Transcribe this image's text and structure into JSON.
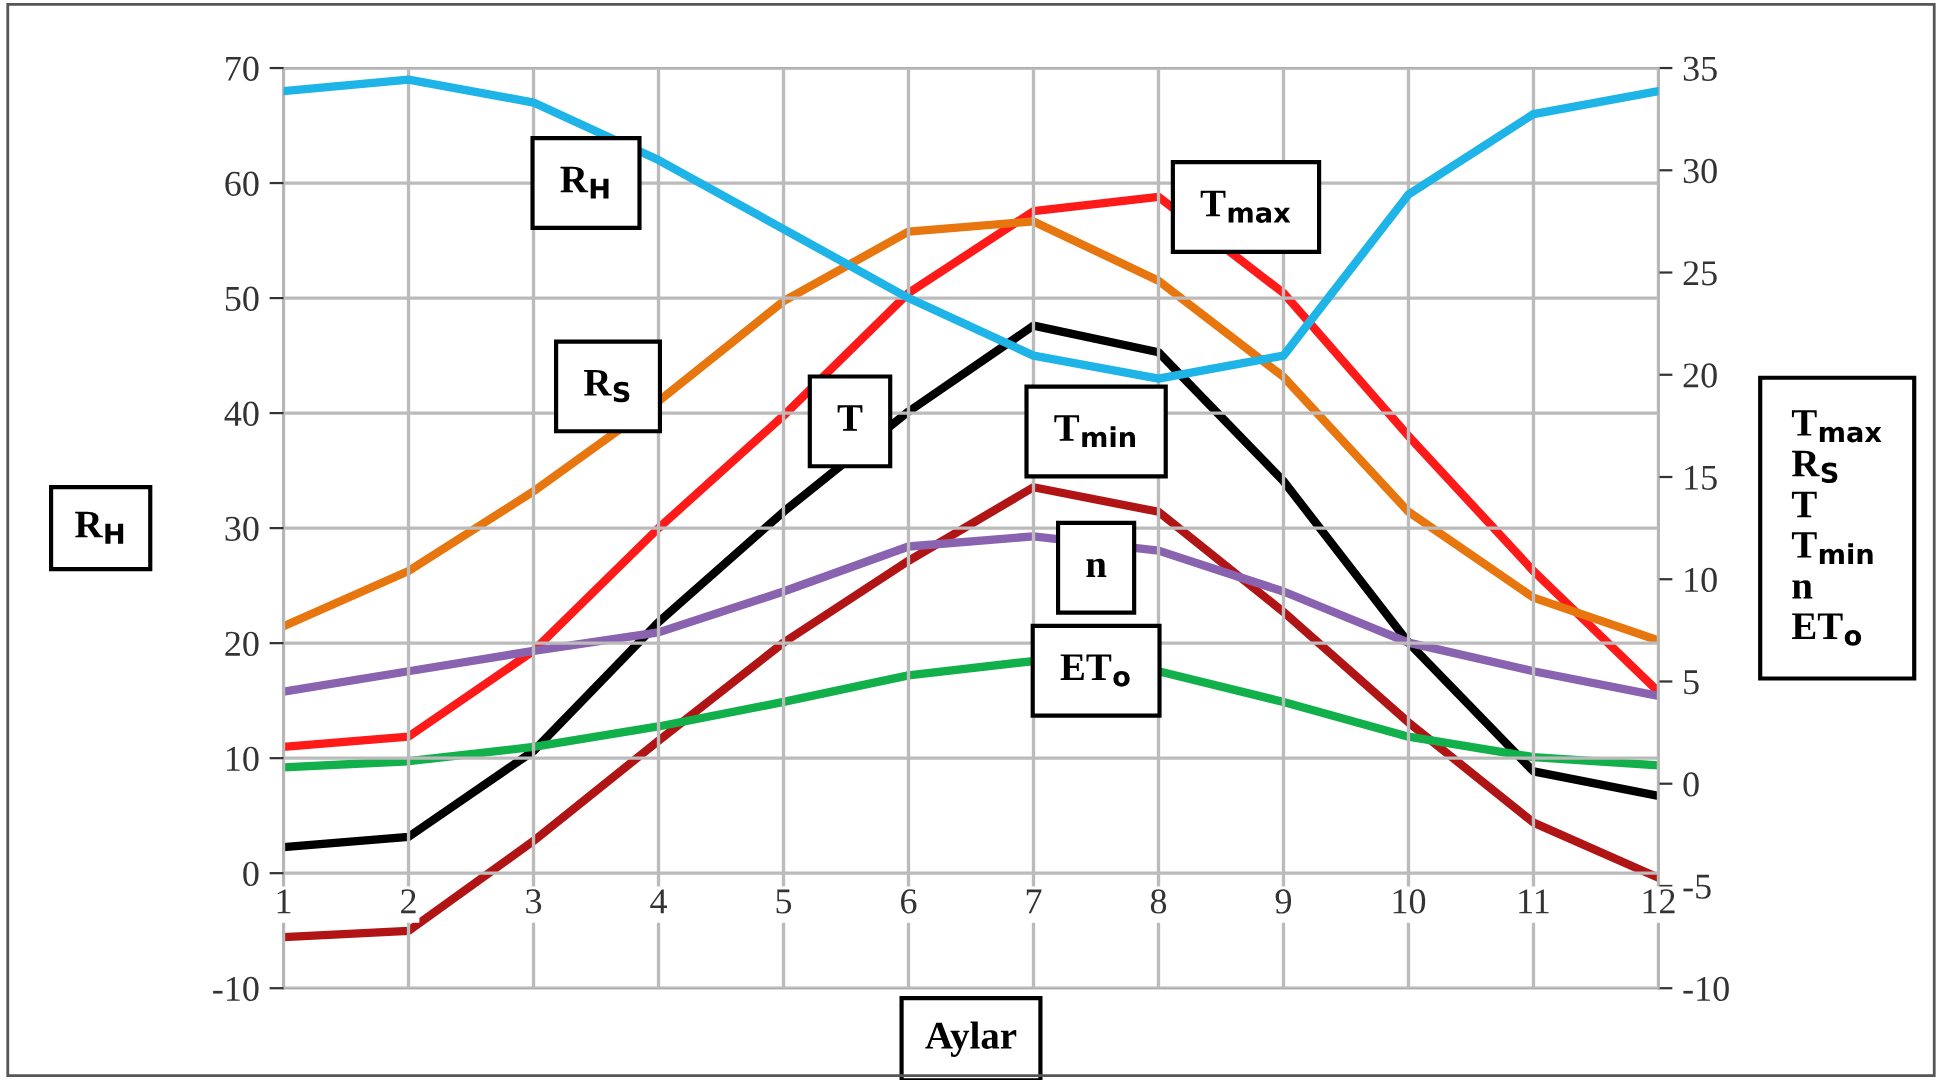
{
  "chart_data": {
    "type": "line",
    "xlabel": "Aylar",
    "ylabel": "R$_{H}$",
    "y2label": "T$_{max}$\nR$_{S}$\nT\nT$_{min}$\nn\nET$_{o}$",
    "x": [
      1,
      2,
      3,
      4,
      5,
      6,
      7,
      8,
      9,
      10,
      11,
      12
    ],
    "xlim": [
      1,
      12
    ],
    "xticks": [
      1,
      2,
      3,
      4,
      5,
      6,
      7,
      8,
      9,
      10,
      11,
      12
    ],
    "ylim": [
      -10,
      70
    ],
    "yticks": [
      -10,
      0,
      10,
      20,
      30,
      40,
      50,
      60,
      70
    ],
    "y2lim": [
      -10,
      35
    ],
    "y2ticks": [
      -10,
      -5,
      0,
      5,
      10,
      15,
      20,
      25,
      30,
      35
    ],
    "grid": true,
    "legend": false,
    "marker": "none",
    "line_style": "solid",
    "series": [
      {
        "color": "#1fb4e8",
        "values": [
          68,
          69,
          67,
          62,
          56,
          50,
          45,
          43,
          45,
          59,
          66,
          68
        ]
      },
      {
        "color": "#ff1a1a",
        "axis": "y2",
        "values": [
          1.8,
          2.3,
          6.5,
          12.5,
          18,
          24,
          28,
          28.7,
          24,
          17,
          10.4,
          4.5
        ]
      },
      {
        "color": "#e8760e",
        "axis": "y2",
        "values": [
          7.7,
          10.4,
          14.3,
          18.7,
          23.6,
          27,
          27.5,
          24.6,
          19.9,
          13.3,
          9.1,
          7
        ]
      },
      {
        "color": "#000000",
        "axis": "y2",
        "values": [
          -3.1,
          -2.6,
          1.6,
          7.9,
          13.3,
          18.2,
          22.4,
          21.1,
          14.8,
          6.9,
          0.6,
          -0.6
        ]
      },
      {
        "color": "#b01414",
        "axis": "y2",
        "values": [
          -7.5,
          -7.2,
          -2.8,
          2.1,
          6.9,
          10.9,
          14.5,
          13.3,
          8.4,
          3,
          -1.9,
          -4.6
        ]
      },
      {
        "color": "#8a63b0",
        "axis": "y2",
        "values": [
          4.5,
          5.5,
          6.5,
          7.4,
          9.4,
          11.6,
          12.1,
          11.4,
          9.4,
          6.9,
          5.5,
          4.3
        ]
      },
      {
        "color": "#12b04a",
        "axis": "y2",
        "values": [
          0.8,
          1.1,
          1.8,
          2.8,
          4,
          5.3,
          6,
          5.5,
          4,
          2.3,
          1.3,
          0.9
        ]
      }
    ],
    "annotations": [
      "R$_{H}$",
      "T$_{max}$",
      "R$_{S}$",
      "T",
      "T$_{min}$",
      "n",
      "ET$_{o}$"
    ]
  }
}
